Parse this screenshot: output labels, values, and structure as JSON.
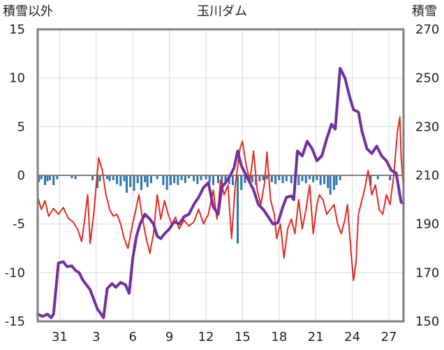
{
  "chart_data": {
    "type": "line",
    "title": "玉川ダム",
    "ylabel_left": "積雪以外",
    "ylabel_right": "積雪",
    "y_left": {
      "range": [
        -15,
        15
      ],
      "ticks": [
        "15",
        "10",
        "5",
        "0",
        "-5",
        "-10",
        "-15"
      ],
      "values": [
        15,
        10,
        5,
        0,
        -5,
        -10,
        -15
      ]
    },
    "y_right": {
      "range": [
        150,
        270
      ],
      "ticks": [
        "270",
        "250",
        "230",
        "210",
        "190",
        "170",
        "150"
      ],
      "values": [
        270,
        250,
        230,
        210,
        190,
        170,
        150
      ]
    },
    "x": {
      "range": [
        29.2,
        59.2
      ],
      "ticks": [
        "31",
        "3",
        "6",
        "9",
        "12",
        "15",
        "18",
        "21",
        "24",
        "27"
      ],
      "positions": [
        31,
        34,
        37,
        40,
        43,
        46,
        49,
        52,
        55,
        58
      ]
    },
    "grid": true,
    "series": [
      {
        "color": "#e32a20",
        "axis": "left",
        "points": [
          [
            29.2,
            -2.2
          ],
          [
            29.5,
            -3.5
          ],
          [
            29.8,
            -2.6
          ],
          [
            30.1,
            -4.2
          ],
          [
            30.5,
            -3.4
          ],
          [
            30.9,
            -4.0
          ],
          [
            31.3,
            -3.3
          ],
          [
            31.7,
            -4.4
          ],
          [
            32.1,
            -4.8
          ],
          [
            32.5,
            -5.6
          ],
          [
            32.8,
            -6.8
          ],
          [
            33.0,
            -5.0
          ],
          [
            33.3,
            -2.0
          ],
          [
            33.5,
            -7.0
          ],
          [
            33.8,
            -4.0
          ],
          [
            34.0,
            -1.0
          ],
          [
            34.2,
            1.8
          ],
          [
            34.5,
            0.5
          ],
          [
            34.8,
            -2.0
          ],
          [
            35.1,
            -3.5
          ],
          [
            35.4,
            -4.2
          ],
          [
            35.7,
            -4.0
          ],
          [
            36.0,
            -5.0
          ],
          [
            36.3,
            -6.5
          ],
          [
            36.6,
            -7.5
          ],
          [
            36.9,
            -5.5
          ],
          [
            37.2,
            -3.8
          ],
          [
            37.5,
            -2.0
          ],
          [
            37.8,
            -4.5
          ],
          [
            38.1,
            -6.5
          ],
          [
            38.4,
            -8.0
          ],
          [
            38.7,
            -6.0
          ],
          [
            39.0,
            -2.0
          ],
          [
            39.3,
            -4.5
          ],
          [
            39.6,
            -2.6
          ],
          [
            39.9,
            -4.0
          ],
          [
            40.2,
            -5.0
          ],
          [
            40.5,
            -4.3
          ],
          [
            40.8,
            -5.5
          ],
          [
            41.2,
            -4.6
          ],
          [
            41.6,
            -5.2
          ],
          [
            42.0,
            -4.8
          ],
          [
            42.4,
            -3.5
          ],
          [
            42.8,
            -5.0
          ],
          [
            43.2,
            -4.0
          ],
          [
            43.6,
            -1.5
          ],
          [
            43.9,
            -4.5
          ],
          [
            44.2,
            -0.5
          ],
          [
            44.5,
            -2.0
          ],
          [
            44.8,
            -1.0
          ],
          [
            45.1,
            -6.5
          ],
          [
            45.4,
            -1.0
          ],
          [
            45.8,
            2.8
          ],
          [
            46.0,
            3.5
          ],
          [
            46.3,
            1.0
          ],
          [
            46.6,
            -0.6
          ],
          [
            46.9,
            2.5
          ],
          [
            47.2,
            -1.5
          ],
          [
            47.5,
            -3.0
          ],
          [
            47.8,
            -0.8
          ],
          [
            48.0,
            2.4
          ],
          [
            48.3,
            -2.5
          ],
          [
            48.6,
            -4.0
          ],
          [
            48.8,
            -6.5
          ],
          [
            49.1,
            -5.0
          ],
          [
            49.4,
            -8.5
          ],
          [
            49.7,
            -5.5
          ],
          [
            50.0,
            -4.5
          ],
          [
            50.3,
            -6.0
          ],
          [
            50.6,
            -2.5
          ],
          [
            50.9,
            -5.5
          ],
          [
            51.2,
            -3.5
          ],
          [
            51.5,
            -1.0
          ],
          [
            51.8,
            -6.0
          ],
          [
            52.1,
            -3.0
          ],
          [
            52.3,
            -2.0
          ],
          [
            52.6,
            -2.5
          ],
          [
            52.9,
            -4.0
          ],
          [
            53.2,
            -3.5
          ],
          [
            53.5,
            -3.0
          ],
          [
            53.8,
            -5.0
          ],
          [
            54.1,
            -6.0
          ],
          [
            54.4,
            -4.5
          ],
          [
            54.6,
            -3.0
          ],
          [
            54.9,
            -8.0
          ],
          [
            55.1,
            -10.8
          ],
          [
            55.3,
            -9.0
          ],
          [
            55.5,
            -4.0
          ],
          [
            55.8,
            -2.5
          ],
          [
            56.0,
            -1.5
          ],
          [
            56.3,
            0.5
          ],
          [
            56.6,
            -2.0
          ],
          [
            56.9,
            -1.0
          ],
          [
            57.2,
            -3.5
          ],
          [
            57.5,
            -4.0
          ],
          [
            57.8,
            -2.0
          ],
          [
            58.1,
            -3.0
          ],
          [
            58.4,
            0.0
          ],
          [
            58.7,
            4.5
          ],
          [
            58.9,
            6.0
          ],
          [
            59.0,
            2.0
          ],
          [
            59.2,
            -1.5
          ]
        ]
      },
      {
        "color": "#7030a0",
        "axis": "right",
        "points": [
          [
            29.2,
            153.0
          ],
          [
            29.6,
            152.0
          ],
          [
            30.0,
            153.0
          ],
          [
            30.3,
            151.5
          ],
          [
            30.5,
            153.0
          ],
          [
            30.9,
            174.0
          ],
          [
            31.3,
            174.5
          ],
          [
            31.6,
            172.5
          ],
          [
            32.0,
            172.8
          ],
          [
            32.3,
            171.0
          ],
          [
            32.6,
            170.0
          ],
          [
            32.9,
            167.0
          ],
          [
            33.2,
            165.0
          ],
          [
            33.5,
            163.0
          ],
          [
            33.8,
            159.0
          ],
          [
            34.1,
            155.0
          ],
          [
            34.4,
            153.0
          ],
          [
            34.6,
            151.5
          ],
          [
            34.9,
            163.5
          ],
          [
            35.3,
            165.5
          ],
          [
            35.6,
            164.0
          ],
          [
            36.0,
            166.0
          ],
          [
            36.4,
            165.0
          ],
          [
            36.7,
            161.5
          ],
          [
            37.0,
            176.0
          ],
          [
            37.3,
            185.0
          ],
          [
            37.6,
            190.0
          ],
          [
            38.0,
            194.0
          ],
          [
            38.4,
            192.0
          ],
          [
            38.7,
            190.0
          ],
          [
            39.0,
            185.0
          ],
          [
            39.3,
            184.0
          ],
          [
            39.6,
            186.0
          ],
          [
            40.0,
            188.0
          ],
          [
            40.4,
            191.0
          ],
          [
            40.8,
            190.0
          ],
          [
            41.2,
            193.0
          ],
          [
            41.6,
            194.0
          ],
          [
            42.0,
            198.0
          ],
          [
            42.4,
            201.0
          ],
          [
            42.8,
            205.0
          ],
          [
            43.2,
            207.0
          ],
          [
            43.6,
            197.0
          ],
          [
            44.0,
            194.0
          ],
          [
            44.3,
            205.0
          ],
          [
            44.6,
            207.0
          ],
          [
            45.0,
            210.0
          ],
          [
            45.3,
            213.0
          ],
          [
            45.6,
            220.0
          ],
          [
            45.9,
            214.0
          ],
          [
            46.2,
            211.0
          ],
          [
            46.5,
            208.0
          ],
          [
            46.9,
            204.0
          ],
          [
            47.3,
            198.0
          ],
          [
            47.7,
            196.0
          ],
          [
            48.1,
            193.0
          ],
          [
            48.5,
            190.0
          ],
          [
            48.9,
            190.5
          ],
          [
            49.3,
            197.0
          ],
          [
            49.6,
            201.0
          ],
          [
            50.0,
            201.5
          ],
          [
            50.2,
            200.0
          ],
          [
            50.5,
            220.0
          ],
          [
            50.9,
            218.0
          ],
          [
            51.3,
            224.0
          ],
          [
            51.7,
            221.0
          ],
          [
            52.1,
            216.0
          ],
          [
            52.5,
            218.0
          ],
          [
            52.9,
            225.0
          ],
          [
            53.3,
            231.0
          ],
          [
            53.6,
            229.0
          ],
          [
            54.0,
            254.0
          ],
          [
            54.4,
            250.0
          ],
          [
            54.8,
            242.0
          ],
          [
            55.1,
            237.0
          ],
          [
            55.5,
            236.0
          ],
          [
            55.8,
            228.0
          ],
          [
            56.2,
            221.0
          ],
          [
            56.6,
            219.0
          ],
          [
            57.0,
            222.0
          ],
          [
            57.4,
            218.0
          ],
          [
            57.8,
            216.0
          ],
          [
            58.2,
            212.0
          ],
          [
            58.6,
            211.0
          ],
          [
            59.0,
            199.0
          ],
          [
            59.2,
            198.5
          ]
        ]
      },
      {
        "color": "#2e75b6",
        "axis": "left",
        "type": "bar",
        "points": [
          [
            29.3,
            -0.7
          ],
          [
            29.5,
            -0.4
          ],
          [
            29.8,
            -1.0
          ],
          [
            30.0,
            -0.6
          ],
          [
            30.2,
            -0.5
          ],
          [
            30.5,
            -1.0
          ],
          [
            30.8,
            -0.4
          ],
          [
            32.0,
            -0.3
          ],
          [
            32.3,
            -0.4
          ],
          [
            33.7,
            -0.5
          ],
          [
            34.1,
            -1.3
          ],
          [
            34.3,
            -0.6
          ],
          [
            34.9,
            -0.4
          ],
          [
            35.1,
            -0.6
          ],
          [
            35.4,
            -0.5
          ],
          [
            35.7,
            -0.9
          ],
          [
            36.0,
            -1.1
          ],
          [
            36.3,
            -0.6
          ],
          [
            36.5,
            -1.8
          ],
          [
            36.8,
            -1.2
          ],
          [
            37.1,
            -1.6
          ],
          [
            37.4,
            -0.8
          ],
          [
            37.7,
            -1.5
          ],
          [
            38.0,
            -0.7
          ],
          [
            38.2,
            -1.2
          ],
          [
            38.5,
            -0.8
          ],
          [
            39.0,
            -0.4
          ],
          [
            39.5,
            -1.0
          ],
          [
            39.8,
            -1.5
          ],
          [
            40.1,
            -1.0
          ],
          [
            40.4,
            -0.8
          ],
          [
            40.7,
            -1.0
          ],
          [
            41.0,
            -0.5
          ],
          [
            41.3,
            -0.8
          ],
          [
            41.6,
            -0.3
          ],
          [
            42.0,
            -0.6
          ],
          [
            42.3,
            -0.9
          ],
          [
            42.6,
            -0.5
          ],
          [
            43.0,
            -0.4
          ],
          [
            43.3,
            -0.7
          ],
          [
            43.6,
            -1.0
          ],
          [
            44.0,
            -0.8
          ],
          [
            44.3,
            -1.2
          ],
          [
            44.6,
            -0.6
          ],
          [
            44.9,
            -0.9
          ],
          [
            45.2,
            -1.0
          ],
          [
            45.6,
            -7.0
          ],
          [
            45.9,
            -1.5
          ],
          [
            46.2,
            -0.8
          ],
          [
            46.5,
            -0.4
          ],
          [
            46.8,
            -0.7
          ],
          [
            47.1,
            -1.0
          ],
          [
            47.4,
            -0.6
          ],
          [
            47.7,
            -0.5
          ],
          [
            48.0,
            -0.4
          ],
          [
            48.4,
            -0.7
          ],
          [
            48.7,
            -0.9
          ],
          [
            49.0,
            -0.5
          ],
          [
            49.3,
            -0.8
          ],
          [
            49.6,
            -0.6
          ],
          [
            50.0,
            -0.8
          ],
          [
            50.3,
            -1.5
          ],
          [
            50.6,
            -1.0
          ],
          [
            50.9,
            -0.6
          ],
          [
            51.2,
            -0.8
          ],
          [
            51.5,
            -0.4
          ],
          [
            51.8,
            -0.7
          ],
          [
            52.1,
            -0.5
          ],
          [
            52.4,
            -1.0
          ],
          [
            52.7,
            -0.9
          ],
          [
            53.0,
            -1.3
          ],
          [
            53.2,
            -2.0
          ],
          [
            53.5,
            -1.5
          ],
          [
            53.7,
            -1.0
          ],
          [
            54.0,
            -0.5
          ],
          [
            56.5,
            -1.0
          ],
          [
            57.1,
            -0.4
          ],
          [
            58.1,
            -0.5
          ]
        ]
      }
    ]
  }
}
